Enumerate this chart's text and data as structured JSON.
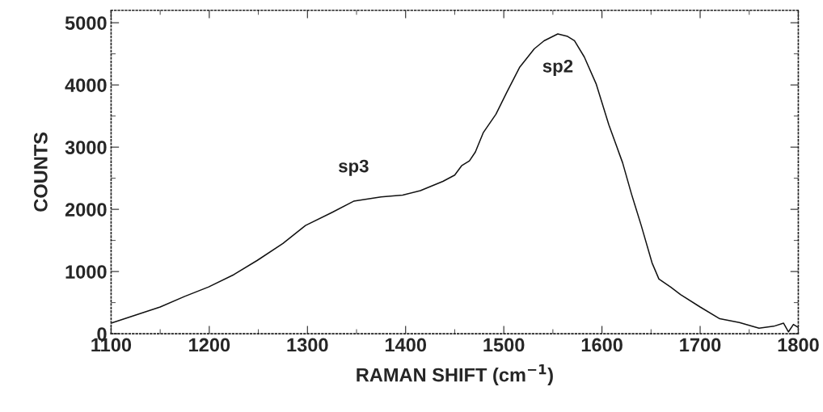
{
  "chart_data": {
    "type": "line",
    "xlabel": "RAMAN SHIFT (cm$^{−1}$)",
    "ylabel": "COUNTS",
    "xlim": [
      1100,
      1800
    ],
    "ylim": [
      0,
      5200
    ],
    "xticks": [
      1100,
      1200,
      1300,
      1400,
      1500,
      1600,
      1700,
      1800
    ],
    "yticks": [
      0,
      1000,
      2000,
      3000,
      4000,
      5000
    ],
    "grid": false,
    "legend": false,
    "marker": "none",
    "line_style": "solid",
    "annotations": [
      {
        "text": "sp3",
        "x": 1347,
        "y": 2130
      },
      {
        "text": "sp2",
        "x": 1555,
        "y": 4820
      }
    ],
    "series": [
      {
        "color": "#111111",
        "x": [
          1100,
          1125,
          1150,
          1175,
          1199,
          1225,
          1249,
          1275,
          1298,
          1325,
          1347,
          1375,
          1397,
          1415,
          1438,
          1450,
          1457,
          1465,
          1471,
          1479,
          1492,
          1503,
          1516,
          1531,
          1541,
          1555,
          1565,
          1572,
          1582,
          1594,
          1607,
          1618,
          1621,
          1630,
          1640,
          1651,
          1658,
          1670,
          1680,
          1700,
          1720,
          1740,
          1760,
          1775,
          1785,
          1790,
          1795,
          1800
        ],
        "values": [
          170,
          300,
          430,
          600,
          750,
          950,
          1180,
          1450,
          1740,
          1950,
          2130,
          2200,
          2230,
          2300,
          2450,
          2550,
          2700,
          2780,
          2920,
          3230,
          3530,
          3880,
          4280,
          4580,
          4710,
          4820,
          4780,
          4710,
          4450,
          4020,
          3360,
          2880,
          2750,
          2250,
          1740,
          1140,
          880,
          750,
          630,
          430,
          240,
          180,
          90,
          120,
          170,
          30,
          150,
          100
        ]
      }
    ]
  }
}
